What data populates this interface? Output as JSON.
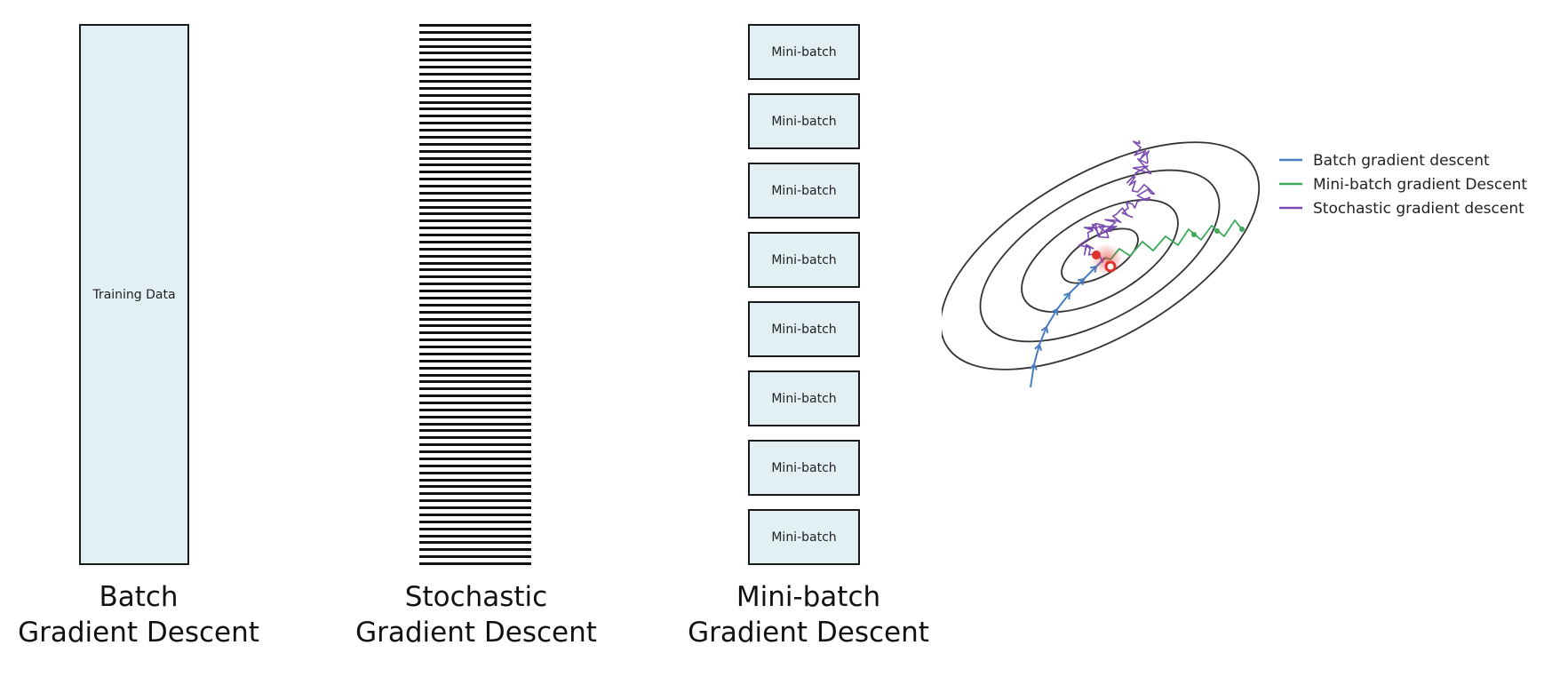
{
  "colors": {
    "box_fill": "#e2eff3",
    "batch_path": "#4a7cc0",
    "minibatch_path": "#3daa5a",
    "stochastic_path": "#7a4bb0",
    "minimum": "#e0302a",
    "contour": "#333333"
  },
  "batch": {
    "box_label": "Training Data",
    "caption_line1": "Batch",
    "caption_line2": "Gradient Descent"
  },
  "stochastic": {
    "stripe_count": 78,
    "caption_line1": "Stochastic",
    "caption_line2": "Gradient Descent"
  },
  "minibatch": {
    "boxes": [
      {
        "label": "Mini-batch"
      },
      {
        "label": "Mini-batch"
      },
      {
        "label": "Mini-batch"
      },
      {
        "label": "Mini-batch"
      },
      {
        "label": "Mini-batch"
      },
      {
        "label": "Mini-batch"
      },
      {
        "label": "Mini-batch"
      },
      {
        "label": "Mini-batch"
      }
    ],
    "caption_line1": "Mini-batch",
    "caption_line2": "Gradient Descent"
  },
  "contour_plot": {
    "contour_levels": 4,
    "legend": [
      {
        "label": "Batch gradient descent",
        "color": "#4a7cc0"
      },
      {
        "label": "Mini-batch gradient Descent",
        "color": "#3daa5a"
      },
      {
        "label": "Stochastic gradient descent",
        "color": "#7a4bb0"
      }
    ]
  }
}
